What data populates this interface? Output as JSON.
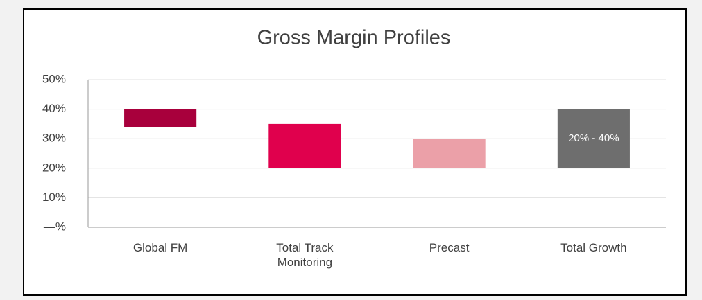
{
  "chart_data": {
    "type": "floating_bar",
    "title": "Gross Margin Profiles",
    "categories": [
      "Global FM",
      "Total Track Monitoring",
      "Precast",
      "Total Growth"
    ],
    "low": [
      34,
      20,
      20,
      20
    ],
    "high": [
      40,
      35,
      30,
      40
    ],
    "colors": [
      "#a8003c",
      "#e0004d",
      "#eba0a8",
      "#6e6e6e"
    ],
    "value_labels": [
      null,
      null,
      null,
      "20% - 40%"
    ],
    "ylim": [
      0,
      50
    ],
    "yticks": [
      {
        "value": 0,
        "label": "—%"
      },
      {
        "value": 10,
        "label": "10%"
      },
      {
        "value": 20,
        "label": "20%"
      },
      {
        "value": 30,
        "label": "30%"
      },
      {
        "value": 40,
        "label": "40%"
      },
      {
        "value": 50,
        "label": "50%"
      }
    ],
    "grid": true
  }
}
